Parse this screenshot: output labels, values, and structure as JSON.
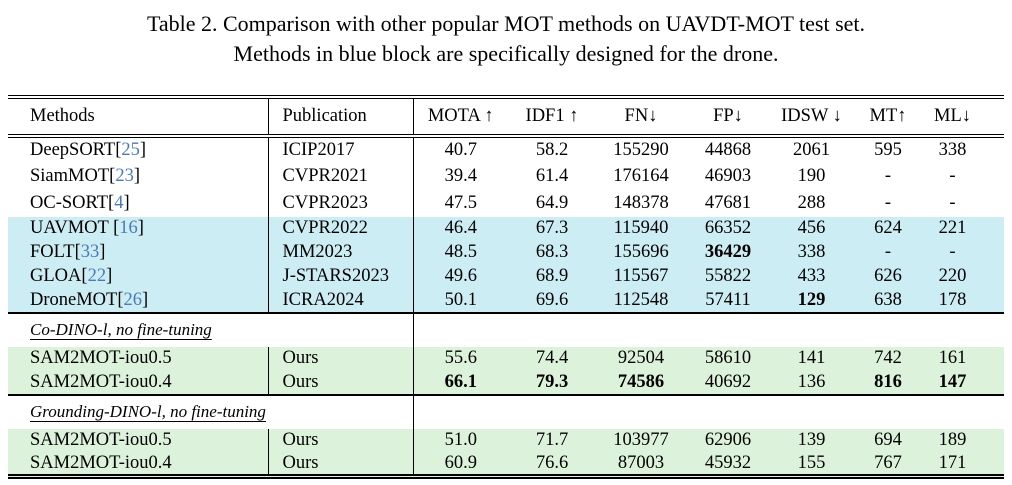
{
  "caption": {
    "line1": "Table 2. Comparison with other popular MOT methods on UAVDT-MOT test set.",
    "line2": "Methods in blue block are specifically designed for the drone."
  },
  "table": {
    "columns": [
      {
        "label": "Methods"
      },
      {
        "label": "Publication"
      },
      {
        "label": "MOTA ↑"
      },
      {
        "label": "IDF1 ↑"
      },
      {
        "label": "FN↓"
      },
      {
        "label": "FP↓"
      },
      {
        "label": "IDSW ↓"
      },
      {
        "label": "MT↑"
      },
      {
        "label": "ML↓"
      }
    ],
    "colors": {
      "blue_block": "#cdedf4",
      "green_block": "#ddf2db",
      "citation_link": "#4b79ba"
    },
    "rows": [
      {
        "type": "data",
        "bg": "white",
        "method": "DeepSORT",
        "cite": "25",
        "pub": "ICIP2017",
        "values": [
          "40.7",
          "58.2",
          "155290",
          "44868",
          "2061",
          "595",
          "338"
        ],
        "bold": []
      },
      {
        "type": "data",
        "bg": "white",
        "method": "SiamMOT",
        "cite": "23",
        "pub": "CVPR2021",
        "values": [
          "39.4",
          "61.4",
          "176164",
          "46903",
          "190",
          "-",
          "-"
        ],
        "bold": []
      },
      {
        "type": "data",
        "bg": "white",
        "method": "OC-SORT",
        "cite": "4",
        "pub": "CVPR2023",
        "values": [
          "47.5",
          "64.9",
          "148378",
          "47681",
          "288",
          "-",
          "-"
        ],
        "bold": []
      },
      {
        "type": "data",
        "bg": "blue",
        "method": "UAVMOT ",
        "cite": "16",
        "pub": "CVPR2022",
        "values": [
          "46.4",
          "67.3",
          "115940",
          "66352",
          "456",
          "624",
          "221"
        ],
        "bold": []
      },
      {
        "type": "data",
        "bg": "blue",
        "method": "FOLT",
        "cite": "33",
        "pub": "MM2023",
        "values": [
          "48.5",
          "68.3",
          "155696",
          "36429",
          "338",
          "-",
          "-"
        ],
        "bold": [
          3
        ]
      },
      {
        "type": "data",
        "bg": "blue",
        "method": "GLOA",
        "cite": "22",
        "pub": "J-STARS2023",
        "values": [
          "49.6",
          "68.9",
          "115567",
          "55822",
          "433",
          "626",
          "220"
        ],
        "bold": []
      },
      {
        "type": "data",
        "bg": "blue",
        "method": "DroneMOT",
        "cite": "26",
        "pub": "ICRA2024",
        "values": [
          "50.1",
          "69.6",
          "112548",
          "57411",
          "129",
          "638",
          "178"
        ],
        "bold": [
          4
        ]
      },
      {
        "type": "section",
        "label": "Co-DINO-l, no fine-tuning"
      },
      {
        "type": "data",
        "bg": "green",
        "method": "SAM2MOT-iou0.5",
        "cite": null,
        "pub": "Ours",
        "values": [
          "55.6",
          "74.4",
          "92504",
          "58610",
          "141",
          "742",
          "161"
        ],
        "bold": []
      },
      {
        "type": "data",
        "bg": "green",
        "method": "SAM2MOT-iou0.4",
        "cite": null,
        "pub": "Ours",
        "values": [
          "66.1",
          "79.3",
          "74586",
          "40692",
          "136",
          "816",
          "147"
        ],
        "bold": [
          0,
          1,
          2,
          5,
          6
        ]
      },
      {
        "type": "section",
        "label": "Grounding-DINO-l, no fine-tuning"
      },
      {
        "type": "data",
        "bg": "green",
        "method": "SAM2MOT-iou0.5",
        "cite": null,
        "pub": "Ours",
        "values": [
          "51.0",
          "71.7",
          "103977",
          "62906",
          "139",
          "694",
          "189"
        ],
        "bold": []
      },
      {
        "type": "data",
        "bg": "green",
        "method": "SAM2MOT-iou0.4",
        "cite": null,
        "pub": "Ours",
        "values": [
          "60.9",
          "76.6",
          "87003",
          "45932",
          "155",
          "767",
          "171"
        ],
        "bold": []
      }
    ]
  }
}
